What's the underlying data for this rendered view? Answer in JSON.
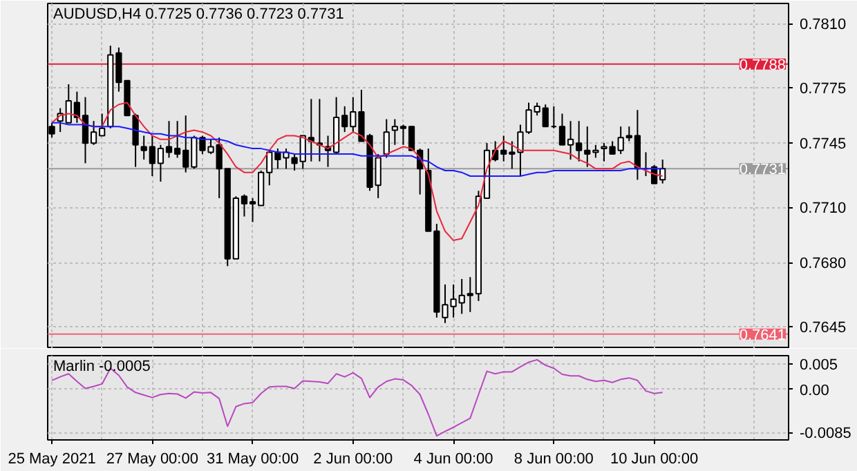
{
  "chart_data": [
    {
      "type": "candlestick",
      "title": "AUDUSD,H4 0.7725 0.7736 0.7723 0.7731",
      "categories": [
        null,
        null,
        null,
        null,
        null,
        null,
        null,
        null,
        null,
        null,
        null,
        null,
        null,
        null,
        null,
        null,
        null,
        null,
        null,
        null,
        null,
        null,
        null,
        null,
        null,
        null,
        null,
        null,
        null,
        null,
        null,
        null,
        null,
        null,
        null,
        null,
        null,
        null,
        null,
        null,
        null,
        null,
        null,
        null,
        null,
        null,
        null,
        null,
        null,
        null,
        null,
        null,
        null,
        null,
        null,
        null,
        null,
        null,
        null,
        null,
        null,
        null,
        null,
        null,
        null,
        null,
        null,
        null,
        null,
        null,
        null,
        null,
        null,
        null
      ],
      "ohlc": [
        [
          0.7754,
          0.7756,
          0.7748,
          0.775
        ],
        [
          0.7757,
          0.7764,
          0.7751,
          0.7761
        ],
        [
          0.7756,
          0.7777,
          0.7756,
          0.7768
        ],
        [
          0.7767,
          0.7773,
          0.7756,
          0.7759
        ],
        [
          0.776,
          0.777,
          0.7734,
          0.7745
        ],
        [
          0.7745,
          0.7757,
          0.7744,
          0.7751
        ],
        [
          0.7749,
          0.7761,
          0.7749,
          0.7753
        ],
        [
          0.7754,
          0.7798,
          0.7753,
          0.7793
        ],
        [
          0.7794,
          0.7797,
          0.7773,
          0.7778
        ],
        [
          0.7779,
          0.7779,
          0.776,
          0.776
        ],
        [
          0.776,
          0.7761,
          0.7732,
          0.7744
        ],
        [
          0.7743,
          0.7749,
          0.7736,
          0.7741
        ],
        [
          0.7743,
          0.7749,
          0.7727,
          0.7734
        ],
        [
          0.7734,
          0.7744,
          0.7724,
          0.7742
        ],
        [
          0.7743,
          0.7757,
          0.7737,
          0.774
        ],
        [
          0.7742,
          0.7757,
          0.7737,
          0.7739
        ],
        [
          0.7741,
          0.776,
          0.7729,
          0.7732
        ],
        [
          0.7732,
          0.7749,
          0.7731,
          0.7748
        ],
        [
          0.7748,
          0.7749,
          0.7739,
          0.7741
        ],
        [
          0.774,
          0.7747,
          0.7739,
          0.7743
        ],
        [
          0.7744,
          0.7748,
          0.7715,
          0.7731
        ],
        [
          0.7731,
          0.7731,
          0.7678,
          0.7682
        ],
        [
          0.7682,
          0.7716,
          0.7682,
          0.7715
        ],
        [
          0.7716,
          0.7717,
          0.7705,
          0.7712
        ],
        [
          0.7713,
          0.7715,
          0.7702,
          0.7712
        ],
        [
          0.7711,
          0.773,
          0.7711,
          0.7729
        ],
        [
          0.7729,
          0.7741,
          0.7722,
          0.774
        ],
        [
          0.774,
          0.7742,
          0.7731,
          0.7736
        ],
        [
          0.7737,
          0.7742,
          0.7731,
          0.774
        ],
        [
          0.7737,
          0.7739,
          0.773,
          0.7734
        ],
        [
          0.7735,
          0.7749,
          0.7731,
          0.7749
        ],
        [
          0.7748,
          0.7769,
          0.7735,
          0.7746
        ],
        [
          0.7745,
          0.7769,
          0.7735,
          0.7744
        ],
        [
          0.7743,
          0.7749,
          0.7732,
          0.7741
        ],
        [
          0.774,
          0.777,
          0.7739,
          0.7759
        ],
        [
          0.776,
          0.7765,
          0.7751,
          0.7754
        ],
        [
          0.7754,
          0.777,
          0.7751,
          0.7762
        ],
        [
          0.7762,
          0.7774,
          0.7746,
          0.7746
        ],
        [
          0.7749,
          0.775,
          0.7719,
          0.7721
        ],
        [
          0.7722,
          0.7739,
          0.7715,
          0.7737
        ],
        [
          0.7739,
          0.7758,
          0.7737,
          0.7751
        ],
        [
          0.7752,
          0.7758,
          0.7744,
          0.7754
        ],
        [
          0.7754,
          0.7755,
          0.7744,
          0.7753
        ],
        [
          0.7754,
          0.7754,
          0.7741,
          0.7741
        ],
        [
          0.7741,
          0.7742,
          0.7717,
          0.7731
        ],
        [
          0.773,
          0.7742,
          0.7697,
          0.7697
        ],
        [
          0.7697,
          0.7701,
          0.765,
          0.7653
        ],
        [
          0.765,
          0.7668,
          0.7647,
          0.7657
        ],
        [
          0.7656,
          0.7668,
          0.765,
          0.766
        ],
        [
          0.7658,
          0.7671,
          0.7652,
          0.7662
        ],
        [
          0.7663,
          0.7672,
          0.7653,
          0.7662
        ],
        [
          0.7663,
          0.7719,
          0.7659,
          0.7716
        ],
        [
          0.7715,
          0.7745,
          0.7715,
          0.7741
        ],
        [
          0.7741,
          0.7746,
          0.7735,
          0.7736
        ],
        [
          0.7741,
          0.7749,
          0.7735,
          0.7739
        ],
        [
          0.774,
          0.7746,
          0.7731,
          0.7739
        ],
        [
          0.774,
          0.7755,
          0.7727,
          0.7751
        ],
        [
          0.7751,
          0.7767,
          0.775,
          0.7763
        ],
        [
          0.7762,
          0.7767,
          0.776,
          0.7765
        ],
        [
          0.7764,
          0.7766,
          0.7754,
          0.7754
        ],
        [
          0.7754,
          0.7765,
          0.7753,
          0.7754
        ],
        [
          0.7754,
          0.7761,
          0.7744,
          0.7744
        ],
        [
          0.7744,
          0.7757,
          0.7736,
          0.7747
        ],
        [
          0.7745,
          0.7757,
          0.7735,
          0.7741
        ],
        [
          0.7741,
          0.7754,
          0.7732,
          0.7739
        ],
        [
          0.774,
          0.7744,
          0.7737,
          0.7741
        ],
        [
          0.7742,
          0.7745,
          0.7735,
          0.7743
        ],
        [
          0.7743,
          0.7746,
          0.7739,
          0.7739
        ],
        [
          0.7741,
          0.7754,
          0.7739,
          0.7748
        ],
        [
          0.7749,
          0.7754,
          0.7746,
          0.7748
        ],
        [
          0.7749,
          0.7763,
          0.7725,
          0.7731
        ],
        [
          0.7731,
          0.774,
          0.7727,
          0.7731
        ],
        [
          0.7732,
          0.7733,
          0.7723,
          0.7723
        ],
        [
          0.7725,
          0.7736,
          0.7723,
          0.7731
        ]
      ],
      "series": [
        {
          "type": "line",
          "color": "#e8283c",
          "values": [
            0.7756,
            0.776,
            0.7761,
            0.776,
            0.7755,
            0.7754,
            0.7754,
            0.7763,
            0.7766,
            0.7767,
            0.776,
            0.7754,
            0.7749,
            0.7747,
            0.7747,
            0.7749,
            0.7751,
            0.7752,
            0.7751,
            0.7749,
            0.7745,
            0.7739,
            0.7732,
            0.7729,
            0.7729,
            0.7734,
            0.7741,
            0.7747,
            0.7749,
            0.7749,
            0.7748,
            0.7746,
            0.7744,
            0.7742,
            0.7745,
            0.7748,
            0.7751,
            0.7749,
            0.7744,
            0.7737,
            0.7739,
            0.7741,
            0.7743,
            0.7742,
            0.7737,
            0.7728,
            0.7708,
            0.7697,
            0.7692,
            0.7693,
            0.7702,
            0.7711,
            0.7731,
            0.7741,
            0.7746,
            0.7744,
            0.7741,
            0.7741,
            0.7741,
            0.7741,
            0.7741,
            0.774,
            0.7739,
            0.7736,
            0.7734,
            0.7731,
            0.7731,
            0.7731,
            0.7734,
            0.7735,
            0.7732,
            0.773,
            0.7728,
            0.7727
          ]
        },
        {
          "type": "line",
          "color": "#1a1aff",
          "values": [
            0.7756,
            0.7756,
            0.7755,
            0.7755,
            0.7755,
            0.7754,
            0.7754,
            0.7754,
            0.7754,
            0.7753,
            0.7752,
            0.7751,
            0.775,
            0.775,
            0.7749,
            0.7749,
            0.7748,
            0.7748,
            0.7747,
            0.7747,
            0.7747,
            0.7746,
            0.7744,
            0.7743,
            0.7742,
            0.7742,
            0.7741,
            0.774,
            0.774,
            0.7739,
            0.7739,
            0.7739,
            0.7739,
            0.7739,
            0.7739,
            0.7739,
            0.7739,
            0.7738,
            0.7738,
            0.7738,
            0.7738,
            0.7738,
            0.7738,
            0.7738,
            0.7736,
            0.7735,
            0.7732,
            0.773,
            0.773,
            0.7729,
            0.7727,
            0.7727,
            0.7727,
            0.7727,
            0.7727,
            0.7727,
            0.7727,
            0.7728,
            0.7729,
            0.7729,
            0.773,
            0.773,
            0.773,
            0.773,
            0.773,
            0.773,
            0.773,
            0.773,
            0.773,
            0.7731,
            0.7731,
            0.7731,
            0.7731,
            0.7731
          ]
        }
      ],
      "ylim": [
        0.7633,
        0.7821
      ],
      "yticks": [
        0.7645,
        {
          "value": 0.768,
          "label": "0.7680"
        },
        {
          "value": 0.771,
          "label": "0.7710"
        },
        0.7745,
        0.7775,
        {
          "value": 0.781,
          "label": "0.7810"
        }
      ],
      "ref_lines": [
        {
          "axis": "y",
          "value": 0.7788,
          "label": "0.7788",
          "color": "#e0203c"
        },
        {
          "axis": "y",
          "value": 0.7731,
          "label": "0.7731",
          "color": "#9a9a9a"
        },
        {
          "axis": "y",
          "value": 0.7641,
          "label": "0.7641",
          "color": "#f06070"
        }
      ],
      "grid": true,
      "tick_labels": "y"
    },
    {
      "type": "line",
      "title": "Marlin -0.0005",
      "categories": [
        "25 May 2021",
        null,
        null,
        null,
        null,
        null,
        null,
        null,
        null,
        null,
        null,
        null,
        "27 May 00:00",
        null,
        null,
        null,
        null,
        null,
        null,
        null,
        null,
        null,
        null,
        null,
        "31 May 00:00",
        null,
        null,
        null,
        null,
        null,
        null,
        null,
        null,
        null,
        null,
        null,
        "2 Jun 00:00",
        null,
        null,
        null,
        null,
        null,
        null,
        null,
        null,
        null,
        null,
        null,
        "4 Jun 00:00",
        null,
        null,
        null,
        null,
        null,
        null,
        null,
        null,
        null,
        null,
        null,
        "8 Jun 00:00",
        null,
        null,
        null,
        null,
        null,
        null,
        null,
        null,
        null,
        null,
        null,
        "10 Jun 00:00",
        null
      ],
      "series": [
        {
          "color": "#b848c0",
          "values": [
            0.0018,
            0.0025,
            0.0031,
            0.0016,
            0.0002,
            0.0006,
            0.0011,
            0.0042,
            0.0028,
            0.0005,
            -0.0006,
            -0.0011,
            -0.0016,
            -0.001,
            -0.0008,
            -0.0009,
            -0.0017,
            -0.0005,
            -0.0007,
            -0.0006,
            -0.0018,
            -0.0073,
            -0.0034,
            -0.0028,
            -0.0026,
            -0.0008,
            0.0005,
            0.0006,
            0.0006,
            0.0002,
            0.0017,
            0.0016,
            0.0015,
            0.0012,
            0.0031,
            0.0025,
            0.0033,
            0.0022,
            -0.0016,
            0.0005,
            0.0016,
            0.0021,
            0.0019,
            0.0008,
            -0.001,
            -0.0049,
            -0.0092,
            -0.0083,
            -0.0075,
            -0.0066,
            -0.0057,
            -0.001,
            0.0036,
            0.0031,
            0.0035,
            0.0035,
            0.0045,
            0.0054,
            0.0059,
            0.0048,
            0.0042,
            0.003,
            0.0027,
            0.0027,
            0.002,
            0.0016,
            0.0018,
            0.0014,
            0.002,
            0.0023,
            0.0018,
            -0.0003,
            -0.0008,
            -0.0006
          ]
        }
      ],
      "ylim": [
        -0.01,
        0.0067
      ],
      "yticks": [
        -0.0085,
        {
          "value": 0,
          "label": "0.00"
        },
        0.005
      ],
      "grid": true
    }
  ]
}
